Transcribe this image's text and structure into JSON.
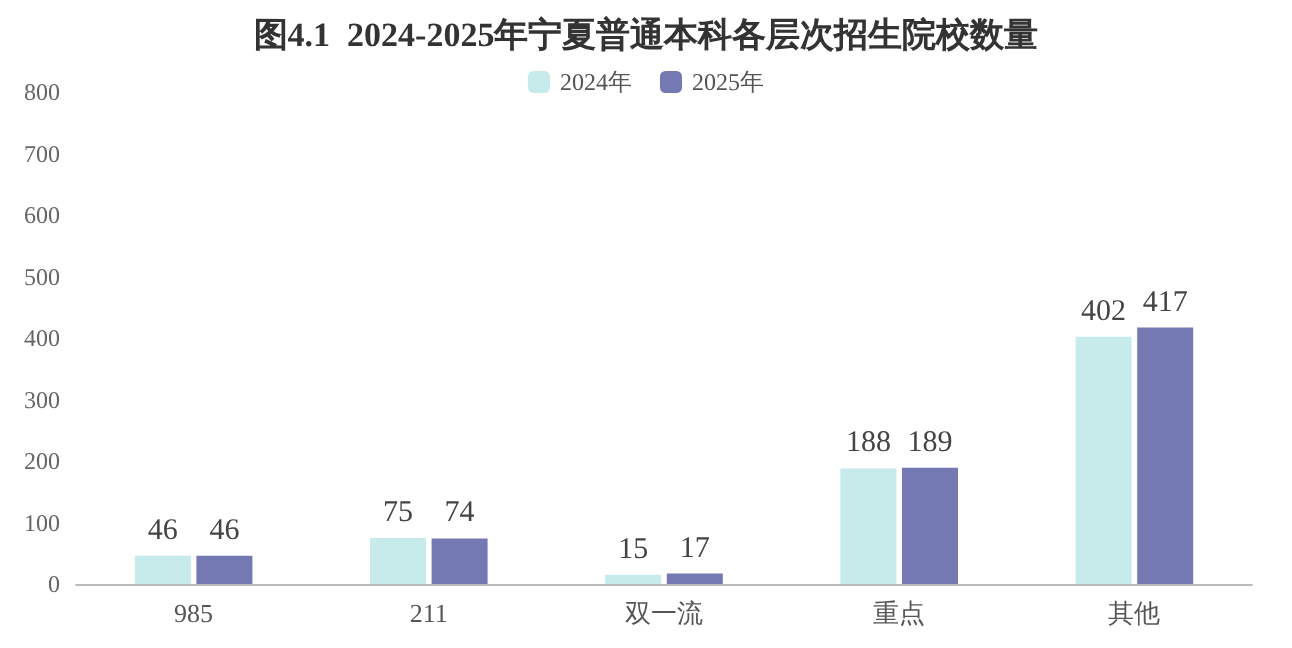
{
  "chart_data": {
    "type": "bar",
    "title": "图4.1  2024-2025年宁夏普通本科各层次招生院校数量",
    "categories": [
      "985",
      "211",
      "双一流",
      "重点",
      "其他"
    ],
    "series": [
      {
        "name": "2024年",
        "color": "#c6ebea",
        "values": [
          46,
          75,
          15,
          188,
          402
        ]
      },
      {
        "name": "2025年",
        "color": "#7479b3",
        "values": [
          46,
          74,
          17,
          189,
          417
        ]
      }
    ],
    "ylim": [
      0,
      800
    ],
    "yticks": [
      0,
      100,
      200,
      300,
      400,
      500,
      600,
      700,
      800
    ],
    "grid": false,
    "legend": "top",
    "data_labels": true
  }
}
